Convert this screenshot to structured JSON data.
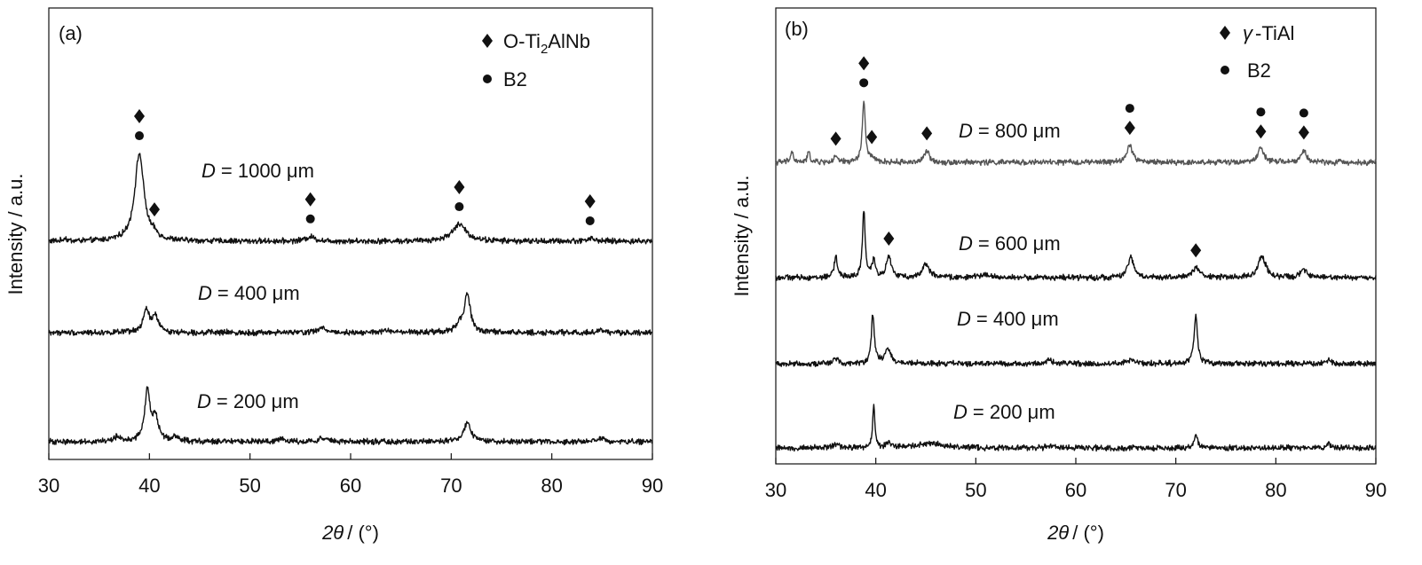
{
  "figure": {
    "background": "#ffffff",
    "ink": "#111111"
  },
  "chart_data": [
    {
      "type": "line",
      "panel_label": "(a)",
      "xlabel_var": "2θ",
      "xlabel_unit": "/ (°)",
      "ylabel": "Intensity / a.u.",
      "xlim": [
        30,
        90
      ],
      "xticks": [
        "30",
        "40",
        "50",
        "60",
        "70",
        "80",
        "90"
      ],
      "legend": [
        {
          "marker": "diamond",
          "prefix": "O-Ti",
          "sub": "2",
          "suffix": "AlNb"
        },
        {
          "marker": "circle",
          "prefix": "B2",
          "sub": "",
          "suffix": ""
        }
      ],
      "series": [
        {
          "label_var": "D",
          "label_value": "= 1000 μm",
          "color": "#111111",
          "baseline": 0.3,
          "peaks": [
            [
              31.6,
              0.09,
              0.15
            ],
            [
              39.0,
              2.35,
              0.55
            ],
            [
              40.5,
              0.1,
              0.35
            ],
            [
              56.0,
              0.12,
              0.55
            ],
            [
              70.8,
              0.45,
              0.85
            ],
            [
              83.8,
              0.07,
              0.55
            ]
          ],
          "markers": [
            {
              "x": 39.0,
              "symbols": [
                "diamond",
                "circle"
              ]
            },
            {
              "x": 40.5,
              "symbols": [
                "diamond"
              ]
            },
            {
              "x": 56.0,
              "symbols": [
                "diamond",
                "circle"
              ]
            },
            {
              "x": 70.8,
              "symbols": [
                "diamond",
                "circle"
              ]
            },
            {
              "x": 83.8,
              "symbols": [
                "diamond",
                "circle"
              ]
            }
          ]
        },
        {
          "label_var": "D",
          "label_value": "= 400 μm",
          "color": "#111111",
          "baseline": 0.3,
          "peaks": [
            [
              39.7,
              0.6,
              0.35
            ],
            [
              40.6,
              0.42,
              0.35
            ],
            [
              57.2,
              0.12,
              0.55
            ],
            [
              63.5,
              0.06,
              0.4
            ],
            [
              70.8,
              0.2,
              0.4
            ],
            [
              71.6,
              1.02,
              0.35
            ],
            [
              84.9,
              0.05,
              0.5
            ]
          ],
          "markers": []
        },
        {
          "label_var": "D",
          "label_value": "= 200 μm",
          "color": "#111111",
          "baseline": 0.3,
          "peaks": [
            [
              36.8,
              0.12,
              0.4
            ],
            [
              39.8,
              1.35,
              0.32
            ],
            [
              40.6,
              0.6,
              0.35
            ],
            [
              42.6,
              0.12,
              0.4
            ],
            [
              53.0,
              0.08,
              0.4
            ],
            [
              57.2,
              0.1,
              0.5
            ],
            [
              71.6,
              0.52,
              0.4
            ],
            [
              84.9,
              0.08,
              0.5
            ]
          ],
          "markers": []
        }
      ]
    },
    {
      "type": "line",
      "panel_label": "(b)",
      "xlabel_var": "2θ",
      "xlabel_unit": "/ (°)",
      "ylabel": "Intensity / a.u.",
      "xlim": [
        30,
        90
      ],
      "xticks": [
        "30",
        "40",
        "50",
        "60",
        "70",
        "80",
        "90"
      ],
      "legend": [
        {
          "marker": "diamond",
          "prefix": "γ",
          "sub": "",
          "suffix": "-TiAl"
        },
        {
          "marker": "circle",
          "prefix": "B2",
          "sub": "",
          "suffix": ""
        }
      ],
      "series": [
        {
          "label_var": "D",
          "label_value": "= 800 μm",
          "color": "#555555",
          "baseline": 0.3,
          "peaks": [
            [
              31.6,
              0.3,
              0.15
            ],
            [
              33.3,
              0.28,
              0.15
            ],
            [
              36.0,
              0.15,
              0.2
            ],
            [
              38.8,
              1.65,
              0.18
            ],
            [
              39.6,
              0.12,
              0.2
            ],
            [
              45.1,
              0.3,
              0.3
            ],
            [
              65.4,
              0.45,
              0.35
            ],
            [
              78.5,
              0.35,
              0.4
            ],
            [
              82.8,
              0.32,
              0.3
            ]
          ],
          "markers": [
            {
              "x": 36.0,
              "symbols": [
                "diamond"
              ]
            },
            {
              "x": 38.8,
              "symbols": [
                "diamond",
                "circle"
              ]
            },
            {
              "x": 39.6,
              "symbols": [
                "diamond"
              ]
            },
            {
              "x": 45.1,
              "symbols": [
                "diamond"
              ]
            },
            {
              "x": 65.4,
              "symbols": [
                "circle",
                "diamond"
              ]
            },
            {
              "x": 78.5,
              "symbols": [
                "circle",
                "diamond"
              ]
            },
            {
              "x": 82.8,
              "symbols": [
                "circle",
                "diamond"
              ]
            }
          ]
        },
        {
          "label_var": "D",
          "label_value": "= 600 μm",
          "color": "#111111",
          "baseline": 0.3,
          "peaks": [
            [
              36.0,
              0.6,
              0.18
            ],
            [
              38.8,
              1.8,
              0.16
            ],
            [
              39.8,
              0.45,
              0.2
            ],
            [
              41.3,
              0.55,
              0.3
            ],
            [
              45.0,
              0.38,
              0.4
            ],
            [
              50.8,
              0.1,
              0.5
            ],
            [
              65.5,
              0.55,
              0.35
            ],
            [
              72.0,
              0.25,
              0.45
            ],
            [
              78.6,
              0.58,
              0.45
            ],
            [
              82.8,
              0.2,
              0.35
            ]
          ],
          "markers": [
            {
              "x": 41.3,
              "symbols": [
                "diamond"
              ]
            },
            {
              "x": 72.0,
              "symbols": [
                "diamond"
              ]
            }
          ]
        },
        {
          "label_var": "D",
          "label_value": "= 400 μm",
          "color": "#111111",
          "baseline": 0.3,
          "peaks": [
            [
              36.0,
              0.15,
              0.3
            ],
            [
              39.7,
              1.3,
              0.18
            ],
            [
              41.2,
              0.4,
              0.35
            ],
            [
              57.3,
              0.1,
              0.3
            ],
            [
              65.4,
              0.08,
              0.5
            ],
            [
              72.0,
              1.32,
              0.2
            ],
            [
              85.3,
              0.08,
              0.3
            ]
          ],
          "markers": []
        },
        {
          "label_var": "D",
          "label_value": "= 200 μm",
          "color": "#111111",
          "baseline": 0.3,
          "peaks": [
            [
              36.0,
              0.1,
              0.3
            ],
            [
              39.8,
              1.12,
              0.14
            ],
            [
              41.2,
              0.12,
              0.3
            ],
            [
              45.5,
              0.12,
              1.5
            ],
            [
              57.5,
              0.06,
              0.4
            ],
            [
              72.0,
              0.32,
              0.2
            ],
            [
              85.3,
              0.1,
              0.3
            ]
          ],
          "markers": []
        }
      ]
    }
  ]
}
